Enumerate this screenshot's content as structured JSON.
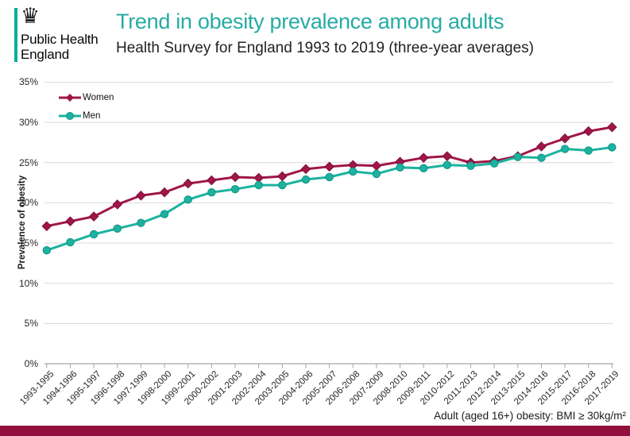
{
  "header": {
    "logo": {
      "crown_glyph": "♛",
      "line1": "Public Health",
      "line2": "England"
    },
    "title": "Trend in obesity prevalence among adults",
    "subtitle": "Health Survey for England 1993 to 2019 (three-year averages)"
  },
  "chart_data": {
    "type": "line",
    "title": "Trend in obesity prevalence among adults",
    "xlabel": "",
    "ylabel": "Prevalence of obesity",
    "ylim": [
      0,
      35
    ],
    "ytick_labels": [
      "0%",
      "5%",
      "10%",
      "15%",
      "20%",
      "25%",
      "30%",
      "35%"
    ],
    "grid": true,
    "legend_position": "top-left-inside",
    "categories": [
      "1993-1995",
      "1994-1996",
      "1995-1997",
      "1996-1998",
      "1997-1999",
      "1998-2000",
      "1999-2001",
      "2000-2002",
      "2001-2003",
      "2002-2004",
      "2003-2005",
      "2004-2006",
      "2005-2007",
      "2006-2008",
      "2007-2009",
      "2008-2010",
      "2009-2011",
      "2010-2012",
      "2011-2013",
      "2012-2014",
      "2013-2015",
      "2014-2016",
      "2015-2017",
      "2016-2018",
      "2017-2019"
    ],
    "series": [
      {
        "name": "Women",
        "marker": "diamond",
        "color": "#A01648",
        "marker_stroke": "#7E0F38",
        "values": [
          17.1,
          17.7,
          18.3,
          19.8,
          20.9,
          21.3,
          22.4,
          22.8,
          23.2,
          23.1,
          23.3,
          24.2,
          24.5,
          24.7,
          24.6,
          25.1,
          25.6,
          25.8,
          25.0,
          25.2,
          25.8,
          27.0,
          28.0,
          28.9,
          29.4
        ]
      },
      {
        "name": "Men",
        "marker": "circle",
        "color": "#1CB2A0",
        "marker_stroke": "#0F9384",
        "values": [
          14.1,
          15.1,
          16.1,
          16.8,
          17.5,
          18.6,
          20.4,
          21.3,
          21.7,
          22.2,
          22.2,
          22.9,
          23.2,
          23.9,
          23.6,
          24.4,
          24.3,
          24.7,
          24.6,
          24.9,
          25.7,
          25.6,
          26.7,
          26.5,
          26.9
        ]
      }
    ]
  },
  "footnote": "Adult (aged 16+) obesity: BMI ≥ 30kg/m²",
  "colors": {
    "title_teal": "#26ABA3",
    "logo_teal": "#00AD9C",
    "bottom_bar": "#930F3D",
    "gridline": "#D9D9D9",
    "axis": "#A6A6A6",
    "label_text": "#262626"
  }
}
